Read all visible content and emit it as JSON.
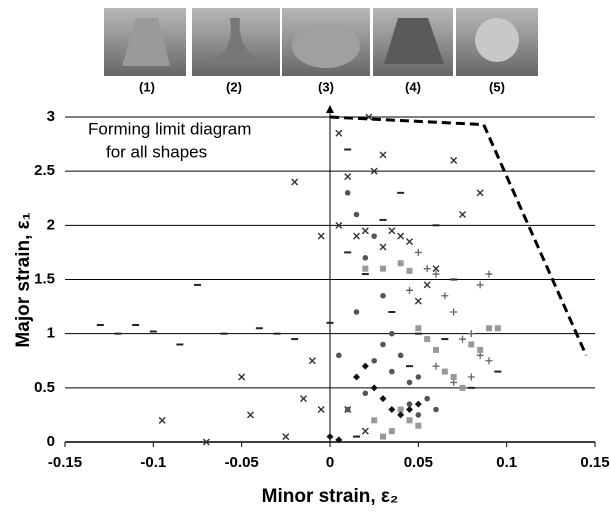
{
  "chart_data": {
    "type": "scatter",
    "image_labels": [
      "(1)",
      "(2)",
      "(3)",
      "(4)",
      "(5)"
    ],
    "annotation": [
      "Forming limit diagram",
      "for all shapes"
    ],
    "x_label": "Minor strain, ε₂",
    "y_label": "Major strain, ε₁",
    "xlim": [
      -0.15,
      0.15
    ],
    "ylim": [
      0,
      3
    ],
    "xticks": [
      -0.15,
      -0.1,
      -0.05,
      0,
      0.05,
      0.1,
      0.15
    ],
    "yticks": [
      0,
      0.5,
      1,
      1.5,
      2,
      2.5,
      3
    ],
    "grid": true,
    "series": [
      {
        "type": "scatter",
        "marker": "x",
        "color": "#333333",
        "x": [
          -0.095,
          -0.05,
          -0.07,
          -0.045,
          -0.02,
          -0.015,
          -0.01,
          0.005,
          0.01,
          0.015,
          0.02,
          0.025,
          0.03,
          0.035,
          0.04,
          0.045,
          0.05,
          0.055,
          0.06,
          0.07,
          0.075,
          0.085,
          -0.005,
          -0.025,
          0.02,
          0.01,
          0.005,
          -0.005,
          0.03,
          0.022
        ],
        "values": [
          0.2,
          0.6,
          0,
          0.25,
          2.4,
          0.4,
          0.75,
          2.85,
          2.45,
          1.9,
          1.95,
          2.5,
          1.8,
          1.95,
          1.9,
          1.85,
          1.3,
          1.45,
          1.6,
          2.6,
          2.1,
          2.3,
          0.3,
          0.05,
          0.1,
          0.3,
          2.0,
          1.9,
          2.65,
          3.0
        ]
      },
      {
        "type": "scatter",
        "marker": "dash",
        "color": "#222222",
        "x": [
          -0.13,
          -0.12,
          -0.11,
          -0.1,
          -0.085,
          -0.075,
          -0.06,
          -0.04,
          -0.03,
          -0.02,
          0.0,
          0.01,
          0.02,
          0.035,
          0.045,
          0.06,
          0.07,
          0.08,
          0.095,
          0.015,
          0.04,
          0.05,
          0.03,
          0.01,
          0.065
        ],
        "values": [
          1.08,
          1.0,
          1.08,
          1.02,
          0.9,
          1.45,
          1.0,
          1.05,
          1.0,
          0.95,
          1.1,
          2.7,
          1.55,
          1.2,
          0.7,
          2.0,
          1.5,
          0.5,
          0.65,
          0.05,
          2.3,
          1.0,
          2.05,
          1.75,
          0.95
        ]
      },
      {
        "type": "scatter",
        "marker": "circle",
        "color": "#555555",
        "x": [
          0.01,
          0.015,
          0.02,
          0.025,
          0.03,
          0.035,
          0.04,
          0.045,
          0.05,
          0.055,
          0.01,
          0.02,
          0.025,
          0.03,
          0.035,
          0.045,
          0.05,
          0.06,
          0.015,
          0.005
        ],
        "values": [
          2.3,
          2.1,
          1.7,
          1.9,
          1.35,
          1.0,
          0.8,
          0.55,
          0.6,
          0.4,
          0.3,
          0.45,
          0.75,
          0.9,
          0.65,
          0.35,
          0.25,
          0.3,
          1.2,
          0.8
        ]
      },
      {
        "type": "scatter",
        "marker": "plus",
        "color": "#666666",
        "x": [
          0.06,
          0.065,
          0.07,
          0.075,
          0.08,
          0.085,
          0.09,
          0.09,
          0.085,
          0.08,
          0.07,
          0.06,
          0.055,
          0.05,
          0.045
        ],
        "values": [
          1.55,
          1.35,
          1.2,
          0.95,
          1.0,
          0.8,
          0.75,
          1.55,
          1.45,
          0.6,
          0.55,
          0.7,
          1.6,
          1.75,
          1.4
        ]
      },
      {
        "type": "scatter",
        "marker": "square",
        "color": "#999999",
        "x": [
          0.05,
          0.055,
          0.06,
          0.065,
          0.07,
          0.075,
          0.08,
          0.085,
          0.09,
          0.095,
          0.04,
          0.045,
          0.05,
          0.035,
          0.03,
          0.025,
          0.02,
          0.03,
          0.04,
          0.045
        ],
        "values": [
          1.05,
          0.95,
          0.85,
          0.65,
          0.6,
          0.5,
          0.9,
          0.85,
          1.05,
          1.05,
          0.3,
          0.2,
          0.15,
          0.1,
          0.05,
          0.2,
          1.6,
          1.6,
          1.65,
          1.58
        ]
      },
      {
        "type": "scatter",
        "marker": "diamond",
        "color": "#111111",
        "x": [
          0.035,
          0.04,
          0.045,
          0.05,
          0.03,
          0.02,
          0.015,
          0.025,
          0.0,
          0.005
        ],
        "values": [
          0.3,
          0.25,
          0.3,
          0.35,
          0.4,
          0.7,
          0.6,
          0.5,
          0.05,
          0.02
        ]
      },
      {
        "type": "line",
        "style": "dashed",
        "color": "#000000",
        "x": [
          0,
          0.087,
          0.145
        ],
        "values": [
          3,
          2.93,
          0.8
        ]
      }
    ]
  }
}
